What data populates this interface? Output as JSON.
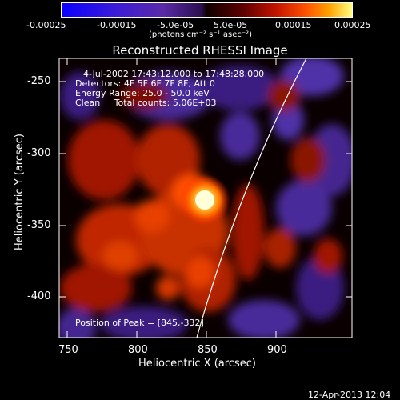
{
  "colorbar": {
    "tick_labels": [
      "-0.00025",
      "-0.00015",
      "-5.0e-05",
      "5.0e-05",
      "0.00015",
      "0.00025"
    ],
    "tick_values": [
      -0.00025,
      -0.00015,
      -5e-05,
      5e-05,
      0.00015,
      0.00025
    ],
    "unit_label": "(photons cm⁻² s⁻¹ asec⁻²)",
    "range": [
      -0.00025,
      0.00025
    ]
  },
  "image": {
    "title": "Reconstructed RHESSI Image",
    "annotations": [
      "4-Jul-2002 17:43:12.000 to 17:48:28.000",
      "Detectors: 4F 5F 6F 7F 8F, Att 0",
      "Energy Range: 25.0 - 50.0 keV",
      "Clean     Total counts: 5.06E+03"
    ],
    "peak_label": "Position of Peak = [845,-332]",
    "peak_position": [
      845,
      -332
    ],
    "xlabel": "Heliocentric X (arcsec)",
    "ylabel": "Heliocentric Y (arcsec)",
    "xlim": [
      745,
      938
    ],
    "ylim": [
      -428,
      -237
    ],
    "x_ticks": [
      750,
      800,
      850,
      900
    ],
    "x_tick_labels": [
      "750",
      "800",
      "850",
      "900"
    ],
    "y_ticks": [
      -250,
      -300,
      -350,
      -400
    ],
    "y_tick_labels": [
      "-250",
      "-300",
      "-350",
      "-400"
    ]
  },
  "footer": {
    "timestamp": "12-Apr-2013 12:04"
  }
}
